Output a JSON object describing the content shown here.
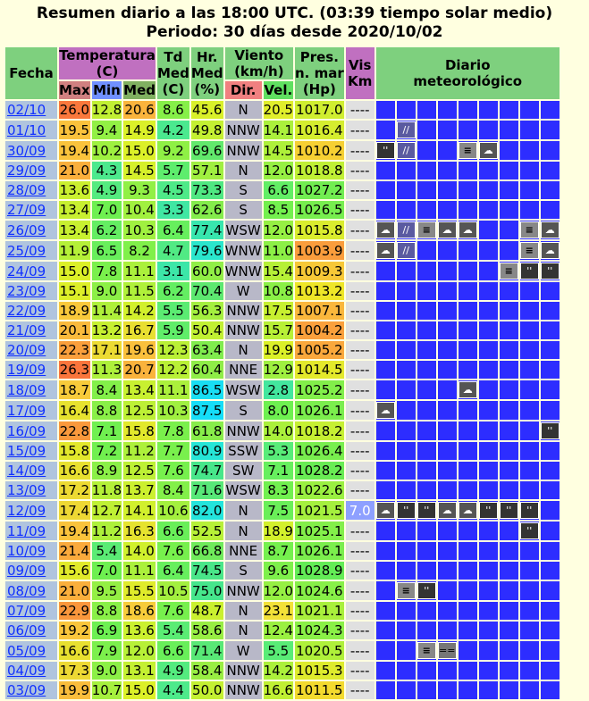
{
  "header": {
    "line1": "Resumen diario a las 18:00 UTC. (03:39 tiempo solar medio)",
    "line2": "Periodo: 30 días desde 2020/10/02"
  },
  "columns": {
    "fecha": "Fecha",
    "temperatura": "Temperatura",
    "temp_unit": "(C)",
    "max": "Max",
    "min": "Min",
    "med": "Med",
    "td": "Td",
    "td2": "Med",
    "td3": "(C)",
    "hr": "Hr.",
    "hr2": "Med",
    "hr3": "(%)",
    "viento": "Viento",
    "viento_unit": "(km/h)",
    "dir": "Dir.",
    "vel": "Vel.",
    "pres": "Pres.",
    "pres2": "n. mar",
    "pres3": "(Hp)",
    "vis": "Vis",
    "vis2": "Km",
    "diario": "Diario",
    "diario2": "meteorológico"
  },
  "rows": [
    {
      "date": "02/10",
      "max": "26.0",
      "min": "12.8",
      "med": "20.6",
      "td": "8.6",
      "hr": "45.6",
      "dir": "N",
      "vel": "20.5",
      "pres": "1017.0",
      "vis": "----",
      "icons": []
    },
    {
      "date": "01/10",
      "max": "19.5",
      "min": "9.4",
      "med": "14.9",
      "td": "4.2",
      "hr": "49.8",
      "dir": "NNW",
      "vel": "14.1",
      "pres": "1016.4",
      "vis": "----",
      "icons": [
        {
          "col": 1,
          "type": "shower",
          "label": "shower-icon",
          "g": "//"
        }
      ]
    },
    {
      "date": "30/09",
      "max": "19.4",
      "min": "10.2",
      "med": "15.0",
      "td": "9.2",
      "hr": "69.6",
      "dir": "NNW",
      "vel": "14.5",
      "pres": "1010.2",
      "vis": "----",
      "icons": [
        {
          "col": 0,
          "type": "drizz",
          "label": "drizzle-icon",
          "g": "''"
        },
        {
          "col": 1,
          "type": "shower",
          "label": "shower-icon",
          "g": "//"
        },
        {
          "col": 4,
          "type": "fog",
          "label": "fog-icon",
          "g": "≡"
        },
        {
          "col": 5,
          "type": "rain",
          "label": "rain-cloud-icon",
          "g": "☁"
        }
      ]
    },
    {
      "date": "29/09",
      "max": "21.0",
      "min": "4.3",
      "med": "14.5",
      "td": "5.7",
      "hr": "57.1",
      "dir": "N",
      "vel": "12.0",
      "pres": "1018.8",
      "vis": "----",
      "icons": []
    },
    {
      "date": "28/09",
      "max": "13.6",
      "min": "4.9",
      "med": "9.3",
      "td": "4.5",
      "hr": "73.3",
      "dir": "S",
      "vel": "6.6",
      "pres": "1027.2",
      "vis": "----",
      "icons": []
    },
    {
      "date": "27/09",
      "max": "13.4",
      "min": "7.0",
      "med": "10.4",
      "td": "3.3",
      "hr": "62.6",
      "dir": "S",
      "vel": "8.5",
      "pres": "1026.5",
      "vis": "----",
      "icons": []
    },
    {
      "date": "26/09",
      "max": "13.4",
      "min": "6.2",
      "med": "10.3",
      "td": "6.4",
      "hr": "77.4",
      "dir": "WSW",
      "vel": "12.0",
      "pres": "1015.8",
      "vis": "----",
      "icons": [
        {
          "col": 0,
          "type": "rain",
          "label": "rain-cloud-icon",
          "g": "☁"
        },
        {
          "col": 1,
          "type": "shower",
          "label": "shower-icon",
          "g": "//"
        },
        {
          "col": 2,
          "type": "fog",
          "label": "fog-icon",
          "g": "≡"
        },
        {
          "col": 3,
          "type": "rain",
          "label": "rain-cloud-icon",
          "g": "☁"
        },
        {
          "col": 4,
          "type": "rain",
          "label": "rain-cloud-icon",
          "g": "☁"
        },
        {
          "col": 7,
          "type": "fog",
          "label": "fog-icon",
          "g": "≡"
        },
        {
          "col": 8,
          "type": "rain",
          "label": "rain-cloud-icon",
          "g": "☁"
        }
      ]
    },
    {
      "date": "25/09",
      "max": "11.9",
      "min": "6.5",
      "med": "8.2",
      "td": "4.7",
      "hr": "79.6",
      "dir": "WNW",
      "vel": "11.0",
      "pres": "1003.9",
      "vis": "----",
      "icons": [
        {
          "col": 0,
          "type": "rain",
          "label": "rain-cloud-icon",
          "g": "☁"
        },
        {
          "col": 1,
          "type": "shower",
          "label": "shower-icon",
          "g": "//"
        },
        {
          "col": 7,
          "type": "fog",
          "label": "fog-icon",
          "g": "≡"
        },
        {
          "col": 8,
          "type": "rain",
          "label": "rain-cloud-icon",
          "g": "☁"
        }
      ]
    },
    {
      "date": "24/09",
      "max": "15.0",
      "min": "7.8",
      "med": "11.1",
      "td": "3.1",
      "hr": "60.0",
      "dir": "WNW",
      "vel": "15.4",
      "pres": "1009.3",
      "vis": "----",
      "icons": [
        {
          "col": 6,
          "type": "fog",
          "label": "fog-icon",
          "g": "≡"
        },
        {
          "col": 7,
          "type": "drizz",
          "label": "drizzle-icon",
          "g": "''"
        },
        {
          "col": 8,
          "type": "drizz",
          "label": "drizzle-icon",
          "g": "''"
        }
      ]
    },
    {
      "date": "23/09",
      "max": "15.1",
      "min": "9.0",
      "med": "11.5",
      "td": "6.2",
      "hr": "70.4",
      "dir": "W",
      "vel": "10.8",
      "pres": "1013.2",
      "vis": "----",
      "icons": []
    },
    {
      "date": "22/09",
      "max": "18.9",
      "min": "11.4",
      "med": "14.2",
      "td": "5.5",
      "hr": "56.3",
      "dir": "NNW",
      "vel": "17.5",
      "pres": "1007.1",
      "vis": "----",
      "icons": []
    },
    {
      "date": "21/09",
      "max": "20.1",
      "min": "13.2",
      "med": "16.7",
      "td": "5.9",
      "hr": "50.4",
      "dir": "NNW",
      "vel": "15.7",
      "pres": "1004.2",
      "vis": "----",
      "icons": []
    },
    {
      "date": "20/09",
      "max": "22.3",
      "min": "17.1",
      "med": "19.6",
      "td": "12.3",
      "hr": "63.4",
      "dir": "N",
      "vel": "19.9",
      "pres": "1005.2",
      "vis": "----",
      "icons": []
    },
    {
      "date": "19/09",
      "max": "26.3",
      "min": "11.3",
      "med": "20.7",
      "td": "12.2",
      "hr": "60.4",
      "dir": "NNE",
      "vel": "12.9",
      "pres": "1014.5",
      "vis": "----",
      "icons": []
    },
    {
      "date": "18/09",
      "max": "18.7",
      "min": "8.4",
      "med": "13.4",
      "td": "11.1",
      "hr": "86.5",
      "dir": "WSW",
      "vel": "2.8",
      "pres": "1025.2",
      "vis": "----",
      "icons": [
        {
          "col": 4,
          "type": "rain",
          "label": "rain-cloud-icon",
          "g": "☁"
        }
      ]
    },
    {
      "date": "17/09",
      "max": "16.4",
      "min": "8.8",
      "med": "12.5",
      "td": "10.3",
      "hr": "87.5",
      "dir": "S",
      "vel": "8.0",
      "pres": "1026.1",
      "vis": "----",
      "icons": [
        {
          "col": 0,
          "type": "rain",
          "label": "rain-cloud-icon",
          "g": "☁"
        }
      ]
    },
    {
      "date": "16/09",
      "max": "22.8",
      "min": "7.1",
      "med": "15.8",
      "td": "7.8",
      "hr": "61.8",
      "dir": "NNW",
      "vel": "14.0",
      "pres": "1018.2",
      "vis": "----",
      "icons": [
        {
          "col": 8,
          "type": "drizz",
          "label": "drizzle-icon",
          "g": "''"
        }
      ]
    },
    {
      "date": "15/09",
      "max": "15.8",
      "min": "7.2",
      "med": "11.2",
      "td": "7.7",
      "hr": "80.9",
      "dir": "SSW",
      "vel": "5.3",
      "pres": "1026.4",
      "vis": "----",
      "icons": []
    },
    {
      "date": "14/09",
      "max": "16.6",
      "min": "8.9",
      "med": "12.5",
      "td": "7.6",
      "hr": "74.7",
      "dir": "SW",
      "vel": "7.1",
      "pres": "1028.2",
      "vis": "----",
      "icons": []
    },
    {
      "date": "13/09",
      "max": "17.2",
      "min": "11.8",
      "med": "13.7",
      "td": "8.4",
      "hr": "71.6",
      "dir": "WSW",
      "vel": "8.3",
      "pres": "1022.6",
      "vis": "----",
      "icons": []
    },
    {
      "date": "12/09",
      "max": "17.4",
      "min": "12.7",
      "med": "14.1",
      "td": "10.6",
      "hr": "82.0",
      "dir": "N",
      "vel": "7.5",
      "pres": "1021.5",
      "vis": "7.0",
      "icons": [
        {
          "col": 0,
          "type": "rain",
          "label": "rain-cloud-icon",
          "g": "☁"
        },
        {
          "col": 1,
          "type": "drizz",
          "label": "drizzle-icon",
          "g": "''"
        },
        {
          "col": 2,
          "type": "drizz",
          "label": "drizzle-icon",
          "g": "''"
        },
        {
          "col": 3,
          "type": "rain",
          "label": "rain-cloud-icon",
          "g": "☁"
        },
        {
          "col": 4,
          "type": "rain",
          "label": "rain-cloud-icon",
          "g": "☁"
        },
        {
          "col": 5,
          "type": "drizz",
          "label": "drizzle-icon",
          "g": "''"
        },
        {
          "col": 6,
          "type": "drizz",
          "label": "drizzle-icon",
          "g": "''"
        },
        {
          "col": 7,
          "type": "drizz",
          "label": "drizzle-icon",
          "g": "''"
        }
      ]
    },
    {
      "date": "11/09",
      "max": "19.4",
      "min": "11.2",
      "med": "16.3",
      "td": "6.6",
      "hr": "52.5",
      "dir": "N",
      "vel": "18.9",
      "pres": "1025.1",
      "vis": "----",
      "icons": [
        {
          "col": 7,
          "type": "drizz",
          "label": "drizzle-icon",
          "g": "''"
        }
      ]
    },
    {
      "date": "10/09",
      "max": "21.4",
      "min": "5.4",
      "med": "14.0",
      "td": "7.6",
      "hr": "66.8",
      "dir": "NNE",
      "vel": "8.7",
      "pres": "1026.1",
      "vis": "----",
      "icons": []
    },
    {
      "date": "09/09",
      "max": "15.6",
      "min": "7.0",
      "med": "11.1",
      "td": "6.4",
      "hr": "74.5",
      "dir": "S",
      "vel": "9.6",
      "pres": "1028.9",
      "vis": "----",
      "icons": []
    },
    {
      "date": "08/09",
      "max": "21.0",
      "min": "9.5",
      "med": "15.5",
      "td": "10.5",
      "hr": "75.0",
      "dir": "NNW",
      "vel": "12.0",
      "pres": "1024.6",
      "vis": "----",
      "icons": [
        {
          "col": 1,
          "type": "fog",
          "label": "fog-icon",
          "g": "≡"
        },
        {
          "col": 2,
          "type": "drizz",
          "label": "drizzle-icon",
          "g": "''"
        }
      ]
    },
    {
      "date": "07/09",
      "max": "22.9",
      "min": "8.8",
      "med": "18.6",
      "td": "7.6",
      "hr": "48.7",
      "dir": "N",
      "vel": "23.1",
      "pres": "1021.1",
      "vis": "----",
      "icons": []
    },
    {
      "date": "06/09",
      "max": "19.2",
      "min": "6.9",
      "med": "13.6",
      "td": "5.4",
      "hr": "58.6",
      "dir": "N",
      "vel": "12.4",
      "pres": "1024.3",
      "vis": "----",
      "icons": []
    },
    {
      "date": "05/09",
      "max": "16.6",
      "min": "7.9",
      "med": "12.0",
      "td": "6.6",
      "hr": "71.4",
      "dir": "W",
      "vel": "5.5",
      "pres": "1020.5",
      "vis": "----",
      "icons": [
        {
          "col": 2,
          "type": "fog",
          "label": "fog-icon",
          "g": "≡"
        },
        {
          "col": 3,
          "type": "cloudy",
          "label": "cloudy-icon",
          "g": "=="
        }
      ]
    },
    {
      "date": "04/09",
      "max": "17.3",
      "min": "9.0",
      "med": "13.1",
      "td": "4.9",
      "hr": "58.4",
      "dir": "NNW",
      "vel": "14.2",
      "pres": "1015.3",
      "vis": "----",
      "icons": []
    },
    {
      "date": "03/09",
      "max": "19.9",
      "min": "10.7",
      "med": "15.0",
      "td": "4.4",
      "hr": "50.0",
      "dir": "NNW",
      "vel": "16.6",
      "pres": "1011.5",
      "vis": "----",
      "icons": []
    }
  ]
}
